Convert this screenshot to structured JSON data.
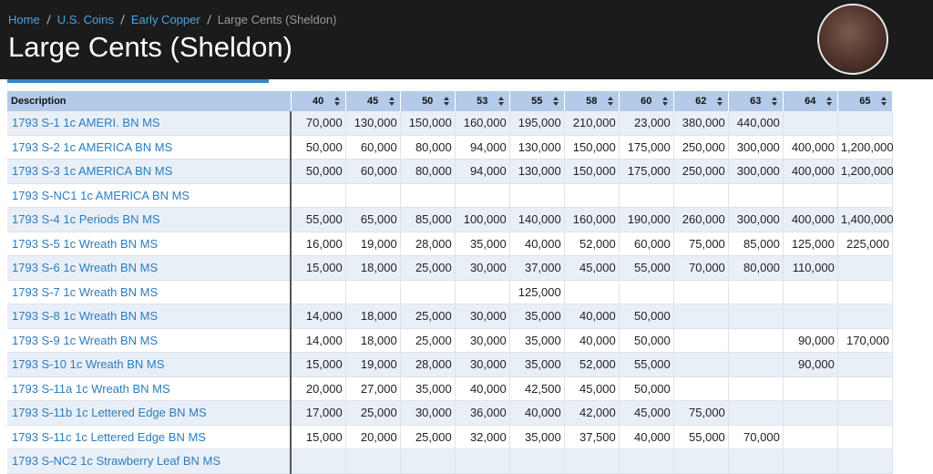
{
  "breadcrumb": [
    "Home",
    "U.S. Coins",
    "Early Copper",
    "Large Cents (Sheldon)"
  ],
  "header": {
    "title": "Large Cents (Sheldon)"
  },
  "table": {
    "columns": [
      "Description",
      "40",
      "45",
      "50",
      "53",
      "55",
      "58",
      "60",
      "62",
      "63",
      "64",
      "65"
    ],
    "rows": [
      {
        "description": "1793 S-1 1c AMERI. BN MS",
        "values": [
          "70,000",
          "130,000",
          "150,000",
          "160,000",
          "195,000",
          "210,000",
          "23,000",
          "380,000",
          "440,000",
          null,
          null
        ]
      },
      {
        "description": "1793 S-2 1c AMERICA BN MS",
        "values": [
          "50,000",
          "60,000",
          "80,000",
          "94,000",
          "130,000",
          "150,000",
          "175,000",
          "250,000",
          "300,000",
          "400,000",
          "1,200,000"
        ]
      },
      {
        "description": "1793 S-3 1c AMERICA BN MS",
        "values": [
          "50,000",
          "60,000",
          "80,000",
          "94,000",
          "130,000",
          "150,000",
          "175,000",
          "250,000",
          "300,000",
          "400,000",
          "1,200,000"
        ]
      },
      {
        "description": "1793 S-NC1 1c AMERICA BN MS",
        "values": [
          null,
          null,
          null,
          null,
          null,
          null,
          null,
          null,
          null,
          null,
          null
        ]
      },
      {
        "description": "1793 S-4 1c Periods BN MS",
        "values": [
          "55,000",
          "65,000",
          "85,000",
          "100,000",
          "140,000",
          "160,000",
          "190,000",
          "260,000",
          "300,000",
          "400,000",
          "1,400,000"
        ]
      },
      {
        "description": "1793 S-5 1c Wreath BN MS",
        "values": [
          "16,000",
          "19,000",
          "28,000",
          "35,000",
          "40,000",
          "52,000",
          "60,000",
          "75,000",
          "85,000",
          "125,000",
          "225,000"
        ]
      },
      {
        "description": "1793 S-6 1c Wreath BN MS",
        "values": [
          "15,000",
          "18,000",
          "25,000",
          "30,000",
          "37,000",
          "45,000",
          "55,000",
          "70,000",
          "80,000",
          "110,000",
          null
        ]
      },
      {
        "description": "1793 S-7 1c Wreath BN MS",
        "values": [
          null,
          null,
          null,
          null,
          "125,000",
          null,
          null,
          null,
          null,
          null,
          null
        ]
      },
      {
        "description": "1793 S-8 1c Wreath BN MS",
        "values": [
          "14,000",
          "18,000",
          "25,000",
          "30,000",
          "35,000",
          "40,000",
          "50,000",
          null,
          null,
          null,
          null
        ]
      },
      {
        "description": "1793 S-9 1c Wreath BN MS",
        "values": [
          "14,000",
          "18,000",
          "25,000",
          "30,000",
          "35,000",
          "40,000",
          "50,000",
          null,
          null,
          "90,000",
          "170,000"
        ]
      },
      {
        "description": "1793 S-10 1c Wreath BN MS",
        "values": [
          "15,000",
          "19,000",
          "28,000",
          "30,000",
          "35,000",
          "52,000",
          "55,000",
          null,
          null,
          "90,000",
          null
        ]
      },
      {
        "description": "1793 S-11a 1c Wreath BN MS",
        "values": [
          "20,000",
          "27,000",
          "35,000",
          "40,000",
          "42,500",
          "45,000",
          "50,000",
          null,
          null,
          null,
          null
        ]
      },
      {
        "description": "1793 S-11b 1c Lettered Edge BN MS",
        "values": [
          "17,000",
          "25,000",
          "30,000",
          "36,000",
          "40,000",
          "42,000",
          "45,000",
          "75,000",
          null,
          null,
          null
        ]
      },
      {
        "description": "1793 S-11c 1c Lettered Edge BN MS",
        "values": [
          "15,000",
          "20,000",
          "25,000",
          "32,000",
          "35,000",
          "37,500",
          "40,000",
          "55,000",
          "70,000",
          null,
          null
        ]
      },
      {
        "description": "1793 S-NC2 1c Strawberry Leaf BN MS",
        "values": [
          null,
          null,
          null,
          null,
          null,
          null,
          null,
          null,
          null,
          null,
          null
        ]
      }
    ]
  }
}
